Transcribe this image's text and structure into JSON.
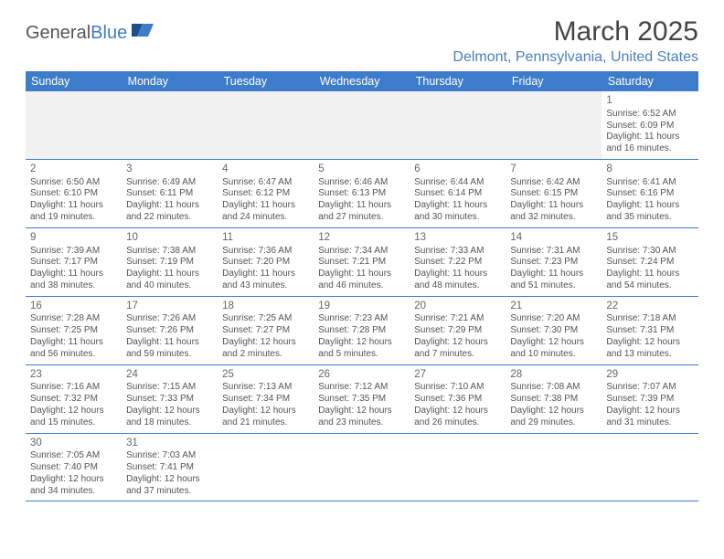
{
  "logo": {
    "part1": "General",
    "part2": "Blue"
  },
  "title": "March 2025",
  "location": "Delmont, Pennsylvania, United States",
  "colors": {
    "header_bg": "#3d7cc9",
    "header_text": "#ffffff",
    "location_text": "#4a80c0",
    "body_text": "#555555",
    "border": "#3d7cc9",
    "empty_bg": "#f1f1f1"
  },
  "weekdays": [
    "Sunday",
    "Monday",
    "Tuesday",
    "Wednesday",
    "Thursday",
    "Friday",
    "Saturday"
  ],
  "weeks": [
    [
      null,
      null,
      null,
      null,
      null,
      null,
      {
        "n": "1",
        "sr": "Sunrise: 6:52 AM",
        "ss": "Sunset: 6:09 PM",
        "d1": "Daylight: 11 hours",
        "d2": "and 16 minutes."
      }
    ],
    [
      {
        "n": "2",
        "sr": "Sunrise: 6:50 AM",
        "ss": "Sunset: 6:10 PM",
        "d1": "Daylight: 11 hours",
        "d2": "and 19 minutes."
      },
      {
        "n": "3",
        "sr": "Sunrise: 6:49 AM",
        "ss": "Sunset: 6:11 PM",
        "d1": "Daylight: 11 hours",
        "d2": "and 22 minutes."
      },
      {
        "n": "4",
        "sr": "Sunrise: 6:47 AM",
        "ss": "Sunset: 6:12 PM",
        "d1": "Daylight: 11 hours",
        "d2": "and 24 minutes."
      },
      {
        "n": "5",
        "sr": "Sunrise: 6:46 AM",
        "ss": "Sunset: 6:13 PM",
        "d1": "Daylight: 11 hours",
        "d2": "and 27 minutes."
      },
      {
        "n": "6",
        "sr": "Sunrise: 6:44 AM",
        "ss": "Sunset: 6:14 PM",
        "d1": "Daylight: 11 hours",
        "d2": "and 30 minutes."
      },
      {
        "n": "7",
        "sr": "Sunrise: 6:42 AM",
        "ss": "Sunset: 6:15 PM",
        "d1": "Daylight: 11 hours",
        "d2": "and 32 minutes."
      },
      {
        "n": "8",
        "sr": "Sunrise: 6:41 AM",
        "ss": "Sunset: 6:16 PM",
        "d1": "Daylight: 11 hours",
        "d2": "and 35 minutes."
      }
    ],
    [
      {
        "n": "9",
        "sr": "Sunrise: 7:39 AM",
        "ss": "Sunset: 7:17 PM",
        "d1": "Daylight: 11 hours",
        "d2": "and 38 minutes."
      },
      {
        "n": "10",
        "sr": "Sunrise: 7:38 AM",
        "ss": "Sunset: 7:19 PM",
        "d1": "Daylight: 11 hours",
        "d2": "and 40 minutes."
      },
      {
        "n": "11",
        "sr": "Sunrise: 7:36 AM",
        "ss": "Sunset: 7:20 PM",
        "d1": "Daylight: 11 hours",
        "d2": "and 43 minutes."
      },
      {
        "n": "12",
        "sr": "Sunrise: 7:34 AM",
        "ss": "Sunset: 7:21 PM",
        "d1": "Daylight: 11 hours",
        "d2": "and 46 minutes."
      },
      {
        "n": "13",
        "sr": "Sunrise: 7:33 AM",
        "ss": "Sunset: 7:22 PM",
        "d1": "Daylight: 11 hours",
        "d2": "and 48 minutes."
      },
      {
        "n": "14",
        "sr": "Sunrise: 7:31 AM",
        "ss": "Sunset: 7:23 PM",
        "d1": "Daylight: 11 hours",
        "d2": "and 51 minutes."
      },
      {
        "n": "15",
        "sr": "Sunrise: 7:30 AM",
        "ss": "Sunset: 7:24 PM",
        "d1": "Daylight: 11 hours",
        "d2": "and 54 minutes."
      }
    ],
    [
      {
        "n": "16",
        "sr": "Sunrise: 7:28 AM",
        "ss": "Sunset: 7:25 PM",
        "d1": "Daylight: 11 hours",
        "d2": "and 56 minutes."
      },
      {
        "n": "17",
        "sr": "Sunrise: 7:26 AM",
        "ss": "Sunset: 7:26 PM",
        "d1": "Daylight: 11 hours",
        "d2": "and 59 minutes."
      },
      {
        "n": "18",
        "sr": "Sunrise: 7:25 AM",
        "ss": "Sunset: 7:27 PM",
        "d1": "Daylight: 12 hours",
        "d2": "and 2 minutes."
      },
      {
        "n": "19",
        "sr": "Sunrise: 7:23 AM",
        "ss": "Sunset: 7:28 PM",
        "d1": "Daylight: 12 hours",
        "d2": "and 5 minutes."
      },
      {
        "n": "20",
        "sr": "Sunrise: 7:21 AM",
        "ss": "Sunset: 7:29 PM",
        "d1": "Daylight: 12 hours",
        "d2": "and 7 minutes."
      },
      {
        "n": "21",
        "sr": "Sunrise: 7:20 AM",
        "ss": "Sunset: 7:30 PM",
        "d1": "Daylight: 12 hours",
        "d2": "and 10 minutes."
      },
      {
        "n": "22",
        "sr": "Sunrise: 7:18 AM",
        "ss": "Sunset: 7:31 PM",
        "d1": "Daylight: 12 hours",
        "d2": "and 13 minutes."
      }
    ],
    [
      {
        "n": "23",
        "sr": "Sunrise: 7:16 AM",
        "ss": "Sunset: 7:32 PM",
        "d1": "Daylight: 12 hours",
        "d2": "and 15 minutes."
      },
      {
        "n": "24",
        "sr": "Sunrise: 7:15 AM",
        "ss": "Sunset: 7:33 PM",
        "d1": "Daylight: 12 hours",
        "d2": "and 18 minutes."
      },
      {
        "n": "25",
        "sr": "Sunrise: 7:13 AM",
        "ss": "Sunset: 7:34 PM",
        "d1": "Daylight: 12 hours",
        "d2": "and 21 minutes."
      },
      {
        "n": "26",
        "sr": "Sunrise: 7:12 AM",
        "ss": "Sunset: 7:35 PM",
        "d1": "Daylight: 12 hours",
        "d2": "and 23 minutes."
      },
      {
        "n": "27",
        "sr": "Sunrise: 7:10 AM",
        "ss": "Sunset: 7:36 PM",
        "d1": "Daylight: 12 hours",
        "d2": "and 26 minutes."
      },
      {
        "n": "28",
        "sr": "Sunrise: 7:08 AM",
        "ss": "Sunset: 7:38 PM",
        "d1": "Daylight: 12 hours",
        "d2": "and 29 minutes."
      },
      {
        "n": "29",
        "sr": "Sunrise: 7:07 AM",
        "ss": "Sunset: 7:39 PM",
        "d1": "Daylight: 12 hours",
        "d2": "and 31 minutes."
      }
    ],
    [
      {
        "n": "30",
        "sr": "Sunrise: 7:05 AM",
        "ss": "Sunset: 7:40 PM",
        "d1": "Daylight: 12 hours",
        "d2": "and 34 minutes."
      },
      {
        "n": "31",
        "sr": "Sunrise: 7:03 AM",
        "ss": "Sunset: 7:41 PM",
        "d1": "Daylight: 12 hours",
        "d2": "and 37 minutes."
      },
      null,
      null,
      null,
      null,
      null
    ]
  ]
}
